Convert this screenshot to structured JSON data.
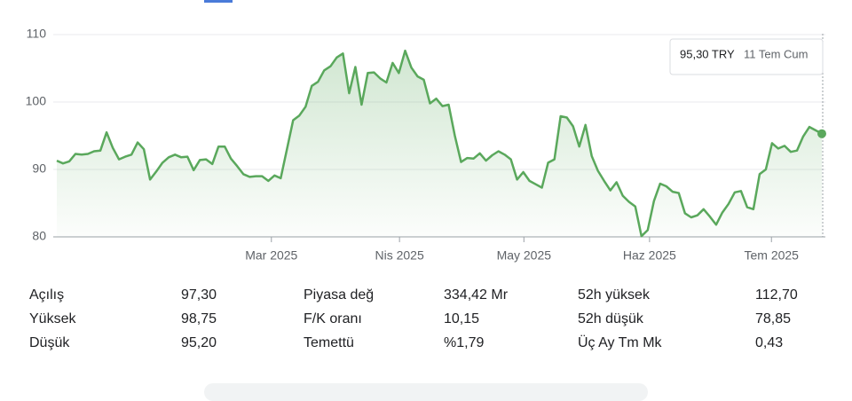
{
  "chart_data": {
    "type": "line",
    "color": "#5aa85c",
    "values": [
      91.3,
      90.9,
      91.2,
      92.3,
      92.2,
      92.3,
      92.7,
      92.8,
      95.5,
      93.2,
      91.5,
      91.9,
      92.2,
      94.0,
      93.0,
      88.5,
      89.7,
      91.0,
      91.8,
      92.2,
      91.8,
      91.9,
      89.9,
      91.4,
      91.5,
      90.8,
      93.4,
      93.4,
      91.6,
      90.5,
      89.3,
      88.9,
      89.0,
      89.0,
      88.3,
      89.1,
      88.7,
      93.0,
      97.3,
      98.0,
      99.3,
      102.4,
      103.0,
      104.7,
      105.3,
      106.6,
      107.2,
      101.3,
      105.2,
      99.6,
      104.3,
      104.4,
      103.5,
      102.9,
      105.8,
      104.3,
      107.6,
      105.1,
      103.8,
      103.3,
      99.8,
      100.5,
      99.4,
      99.6,
      95.0,
      91.1,
      91.7,
      91.6,
      92.4,
      91.3,
      92.1,
      92.7,
      92.2,
      91.5,
      88.5,
      89.6,
      88.3,
      87.8,
      87.3,
      91.0,
      91.5,
      97.9,
      97.7,
      96.4,
      93.4,
      96.6,
      92.0,
      89.8,
      88.3,
      86.9,
      88.1,
      86.1,
      85.2,
      84.5,
      80.1,
      81.0,
      85.3,
      87.9,
      87.5,
      86.7,
      86.5,
      83.5,
      82.9,
      83.2,
      84.1,
      83.0,
      81.8,
      83.6,
      84.9,
      86.6,
      86.8,
      84.4,
      84.1,
      89.3,
      90.0,
      93.9,
      93.1,
      93.5,
      92.6,
      92.8,
      94.9,
      96.3,
      95.8,
      95.3
    ],
    "xlim": [
      0,
      123
    ],
    "xticks": [
      {
        "value": 34.5,
        "label": "Mar 2025"
      },
      {
        "value": 55.1,
        "label": "Nis 2025"
      },
      {
        "value": 75.1,
        "label": "May 2025"
      },
      {
        "value": 95.3,
        "label": "Haz 2025"
      },
      {
        "value": 114.9,
        "label": "Tem 2025"
      }
    ],
    "ylim": [
      80,
      112.5
    ],
    "yticks": [
      80,
      90,
      100,
      110
    ],
    "grid": true,
    "tooltip": {
      "price": "95,30 TRY",
      "date": "11 Tem Cum"
    }
  },
  "stats": [
    [
      [
        "Açılış",
        "97,30"
      ],
      [
        "Piyasa değ",
        "334,42 Mr"
      ],
      [
        "52h yüksek",
        "112,70"
      ]
    ],
    [
      [
        "Yüksek",
        "98,75"
      ],
      [
        "F/K oranı",
        "10,15"
      ],
      [
        "52h düşük",
        "78,85"
      ]
    ],
    [
      [
        "Düşük",
        "95,20"
      ],
      [
        "Temettü",
        "%1,79"
      ],
      [
        "Üç Ay Tm Mk",
        "0,43"
      ]
    ]
  ]
}
